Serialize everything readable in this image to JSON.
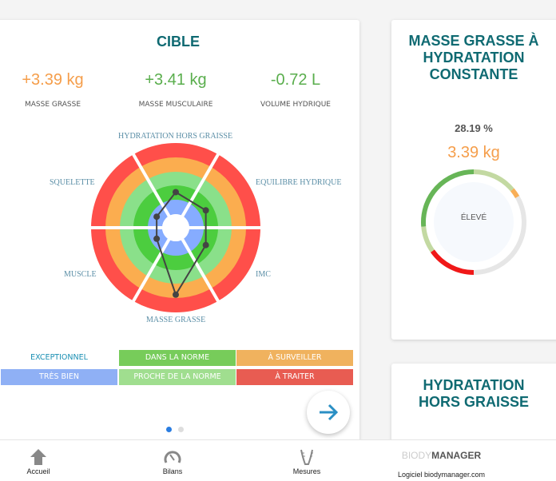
{
  "target": {
    "title": "CIBLE",
    "metrics": [
      {
        "value": "+3.39 kg",
        "label": "MASSE GRASSE",
        "color": "#f59e4b"
      },
      {
        "value": "+3.41 kg",
        "label": "MASSE MUSCULAIRE",
        "color": "#5aae4d"
      },
      {
        "value": "-0.72 L",
        "label": "VOLUME HYDRIQUE",
        "color": "#5aae4d"
      }
    ],
    "axes": [
      "HYDRATATION HORS GRAISSE",
      "EQUILIBRE HYDRIQUE",
      "IMC",
      "MASSE GRASSE",
      "MUSCLE",
      "SQUELETTE"
    ],
    "radar_levels": [
      0.42,
      0.41,
      0.41,
      0.79,
      0.26,
      0.26
    ],
    "legend": [
      {
        "label": "EXCEPTIONNEL",
        "color": "#ffffff"
      },
      {
        "label": "DANS LA NORME",
        "color": "#77cc5a"
      },
      {
        "label": "À SURVEILLER",
        "color": "#f0b25e"
      },
      {
        "label": "TRÈS BIEN",
        "color": "#8fb0f5"
      },
      {
        "label": "PROCHE DE LA NORME",
        "color": "#a0de8f"
      },
      {
        "label": "À TRAITER",
        "color": "#e85c52"
      }
    ]
  },
  "fat_card": {
    "title": "MASSE GRASSE À HYDRATATION CONSTANTE",
    "percent": "28.19 %",
    "value": "3.39 kg",
    "status": "ÉLEVÉ"
  },
  "hydration_card": {
    "title": "HYDRATATION HORS GRAISSE"
  },
  "nav": {
    "items": [
      {
        "label": "Accueil"
      },
      {
        "label": "Bilans"
      },
      {
        "label": "Mesures"
      }
    ],
    "brand_light": "BIODY",
    "brand_bold": "MANAGER",
    "brand_sub": "Logiciel biodymanager.com"
  }
}
